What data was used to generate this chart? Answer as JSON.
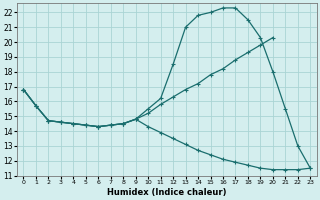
{
  "xlabel": "Humidex (Indice chaleur)",
  "bg_color": "#d4eeee",
  "grid_color": "#aad4d4",
  "line_color": "#1a6e6e",
  "xlim": [
    -0.5,
    23.5
  ],
  "ylim": [
    11,
    22.6
  ],
  "xticks": [
    0,
    1,
    2,
    3,
    4,
    5,
    6,
    7,
    8,
    9,
    10,
    11,
    12,
    13,
    14,
    15,
    16,
    17,
    18,
    19,
    20,
    21,
    22,
    23
  ],
  "yticks": [
    11,
    12,
    13,
    14,
    15,
    16,
    17,
    18,
    19,
    20,
    21,
    22
  ],
  "line1_x": [
    0,
    1,
    2,
    3,
    4,
    5,
    6,
    7,
    8,
    9,
    10,
    11,
    12,
    13,
    14,
    15,
    16,
    17,
    18,
    19,
    20,
    21,
    22,
    23
  ],
  "line1_y": [
    16.8,
    15.7,
    14.7,
    14.6,
    14.5,
    14.4,
    14.3,
    14.4,
    14.5,
    14.8,
    15.5,
    16.2,
    18.5,
    21.0,
    21.8,
    22.0,
    22.3,
    22.3,
    21.5,
    20.3,
    18.0,
    15.5,
    13.0,
    11.5
  ],
  "line2_x": [
    0,
    1,
    2,
    3,
    4,
    5,
    6,
    7,
    8,
    9,
    10,
    11,
    12,
    13,
    14,
    15,
    16,
    17,
    18,
    19,
    20
  ],
  "line2_y": [
    16.8,
    15.7,
    14.7,
    14.6,
    14.5,
    14.4,
    14.3,
    14.4,
    14.5,
    14.8,
    15.2,
    15.8,
    16.3,
    16.8,
    17.2,
    17.8,
    18.2,
    18.8,
    19.3,
    19.8,
    20.3
  ],
  "line3_x": [
    0,
    1,
    2,
    3,
    4,
    5,
    6,
    7,
    8,
    9,
    10,
    11,
    12,
    13,
    14,
    15,
    16,
    17,
    18,
    19,
    20,
    21,
    22,
    23
  ],
  "line3_y": [
    16.8,
    15.7,
    14.7,
    14.6,
    14.5,
    14.4,
    14.3,
    14.4,
    14.5,
    14.8,
    14.3,
    13.9,
    13.5,
    13.1,
    12.7,
    12.4,
    12.1,
    11.9,
    11.7,
    11.5,
    11.4,
    11.4,
    11.4,
    11.5
  ]
}
